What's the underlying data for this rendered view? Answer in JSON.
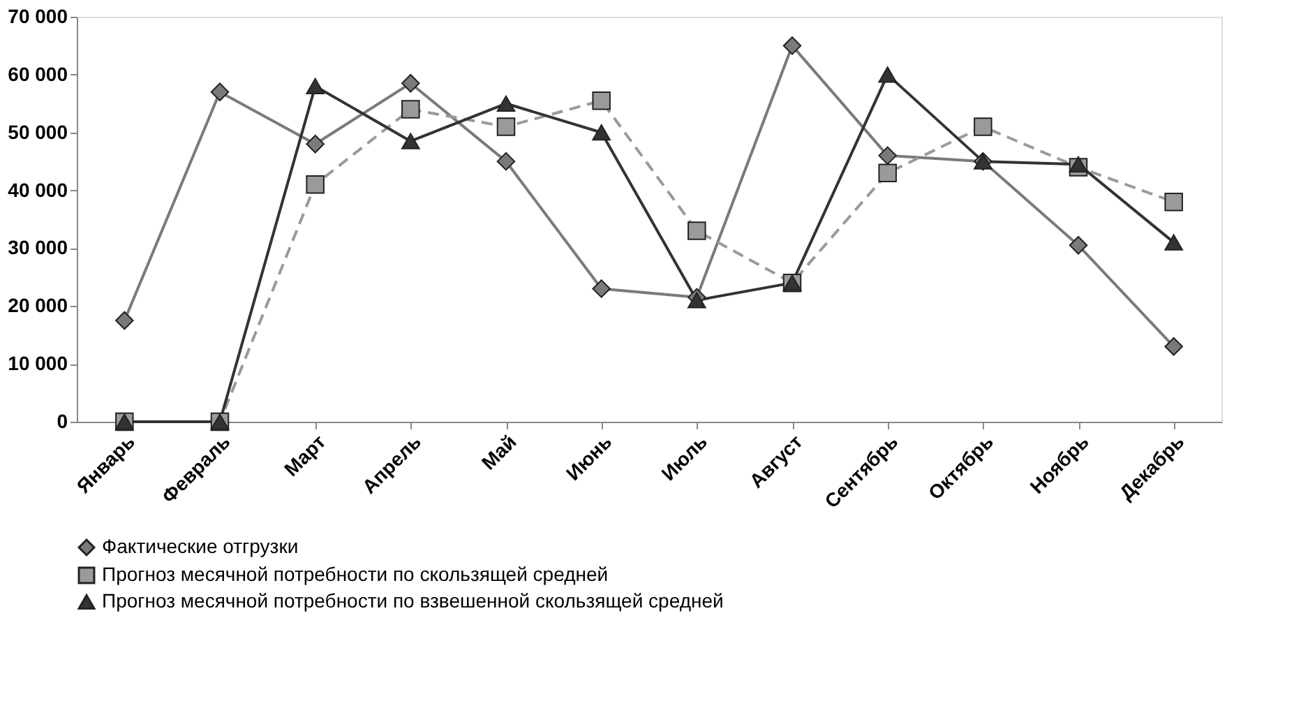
{
  "chart_data": {
    "type": "line",
    "categories": [
      "Январь",
      "Февраль",
      "Март",
      "Апрель",
      "Май",
      "Июнь",
      "Июль",
      "Август",
      "Сентябрь",
      "Октябрь",
      "Ноябрь",
      "Декабрь"
    ],
    "series": [
      {
        "name": "Фактические отгрузки",
        "color": "#7a7a7a",
        "marker": "diamond",
        "line_style": "solid",
        "values": [
          17500,
          57000,
          48000,
          58500,
          45000,
          23000,
          21500,
          65000,
          46000,
          45000,
          30500,
          13000
        ]
      },
      {
        "name": "Прогноз месячной потребности по скользящей средней",
        "color": "#9a9a9a",
        "marker": "square",
        "line_style": "dashed",
        "values": [
          0,
          0,
          41000,
          54000,
          51000,
          55500,
          33000,
          24000,
          43000,
          51000,
          44000,
          38000
        ]
      },
      {
        "name": "Прогноз месячной потребности по взвешенной скользящей средней",
        "color": "#333333",
        "marker": "triangle",
        "line_style": "solid",
        "values": [
          0,
          0,
          58000,
          48500,
          55000,
          50000,
          21000,
          24000,
          60000,
          45000,
          44500,
          31000
        ]
      }
    ],
    "ylim": [
      0,
      70000
    ],
    "yticks": [
      {
        "value": 0,
        "label": "0"
      },
      {
        "value": 10000,
        "label": "10 000"
      },
      {
        "value": 20000,
        "label": "20 000"
      },
      {
        "value": 30000,
        "label": "30 000"
      },
      {
        "value": 40000,
        "label": "40 000"
      },
      {
        "value": 50000,
        "label": "50 000"
      },
      {
        "value": 60000,
        "label": "60 000"
      },
      {
        "value": 70000,
        "label": "70 000"
      }
    ],
    "grid": false,
    "legend": "bottom"
  }
}
